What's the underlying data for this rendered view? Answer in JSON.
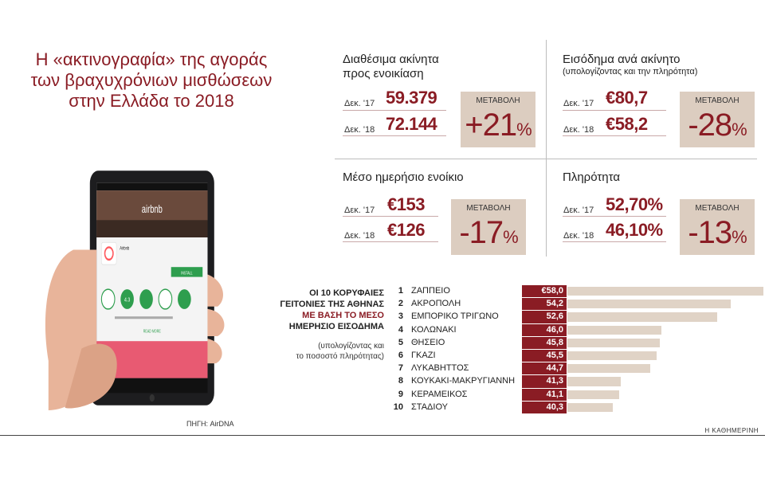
{
  "title_lines": [
    "Η «ακτινογραφία» της αγοράς",
    "των βραχυχρόνιων μισθώσεων",
    "στην Ελλάδα το 2018"
  ],
  "change_label": "ΜΕΤΑΒΟΛΗ",
  "stats": [
    {
      "title_lines": [
        "Διαθέσιμα ακίνητα",
        "προς ενοικίαση"
      ],
      "subtitle": "",
      "rows": [
        {
          "year": "Δεκ. '17",
          "value": "59.379"
        },
        {
          "year": "Δεκ. '18",
          "value": "72.144"
        }
      ],
      "change_num": "+21",
      "change_pct": "%"
    },
    {
      "title_lines": [
        "Εισόδημα ανά ακίνητο"
      ],
      "subtitle": "(υπολογίζοντας και την πληρότητα)",
      "rows": [
        {
          "year": "Δεκ. '17",
          "value": "€80,7"
        },
        {
          "year": "Δεκ. '18",
          "value": "€58,2"
        }
      ],
      "change_num": "-28",
      "change_pct": "%"
    },
    {
      "title_lines": [
        "Μέσο ημερήσιο ενοίκιο"
      ],
      "subtitle": "",
      "rows": [
        {
          "year": "Δεκ. '17",
          "value": "€153"
        },
        {
          "year": "Δεκ. '18",
          "value": "€126"
        }
      ],
      "change_num": "-17",
      "change_pct": "%"
    },
    {
      "title_lines": [
        "Πληρότητα"
      ],
      "subtitle": "",
      "rows": [
        {
          "year": "Δεκ. '17",
          "value": "52,70%"
        },
        {
          "year": "Δεκ. '18",
          "value": "46,10%"
        }
      ],
      "change_num": "-13",
      "change_pct": "%"
    }
  ],
  "ranking": {
    "heading_lines": [
      "ΟΙ 10 ΚΟΡΥΦΑΙΕΣ",
      "ΓΕΙΤΟΝΙΕΣ ΤΗΣ ΑΘΗΝΑΣ",
      "ΜΕ ΒΑΣΗ ΤΟ ΜΕΣΟ",
      "ΗΜΕΡΗΣΙΟ ΕΙΣΟΔΗΜΑ"
    ],
    "note_lines": [
      "(υπολογίζοντας και",
      "το ποσοστό πληρότητας)"
    ]
  },
  "chart_data": {
    "type": "bar",
    "orientation": "horizontal",
    "categories": [
      "ΖΑΠΠΕΙΟ",
      "ΑΚΡΟΠΟΛΗ",
      "ΕΜΠΟΡΙΚΟ ΤΡΙΓΩΝΟ",
      "ΚΟΛΩΝΑΚΙ",
      "ΘΗΣΕΙΟ",
      "ΓΚΑΖΙ",
      "ΛΥΚΑΒΗΤΤΟΣ",
      "ΚΟΥΚΑΚΙ-ΜΑΚΡΥΓΙΑΝΝΗ",
      "ΚΕΡΑΜΕΙΚΟΣ",
      "ΣΤΑΔΙΟΥ"
    ],
    "ranks": [
      "1",
      "2",
      "3",
      "4",
      "5",
      "6",
      "7",
      "8",
      "9",
      "10"
    ],
    "values": [
      58.0,
      54.2,
      52.6,
      46.0,
      45.8,
      45.5,
      44.7,
      41.3,
      41.1,
      40.3
    ],
    "value_labels": [
      "€58,0",
      "54,2",
      "52,6",
      "46,0",
      "45,8",
      "45,5",
      "44,7",
      "41,3",
      "41,1",
      "40,3"
    ],
    "colors": {
      "value_box": "#8a1c24",
      "bar": "#e0d3c6"
    }
  },
  "phone": {
    "app_brand": "airbnb",
    "app_name": "Airbnb",
    "install_label": "INSTALL",
    "read_more": "READ MORE",
    "rating": "4.3"
  },
  "source": "ΠΗΓΗ: AirDNA",
  "brand": "Η ΚΑΘΗΜΕΡΙΝΗ",
  "colors": {
    "accent": "#8a1c24",
    "change_box": "#dccdc0"
  }
}
